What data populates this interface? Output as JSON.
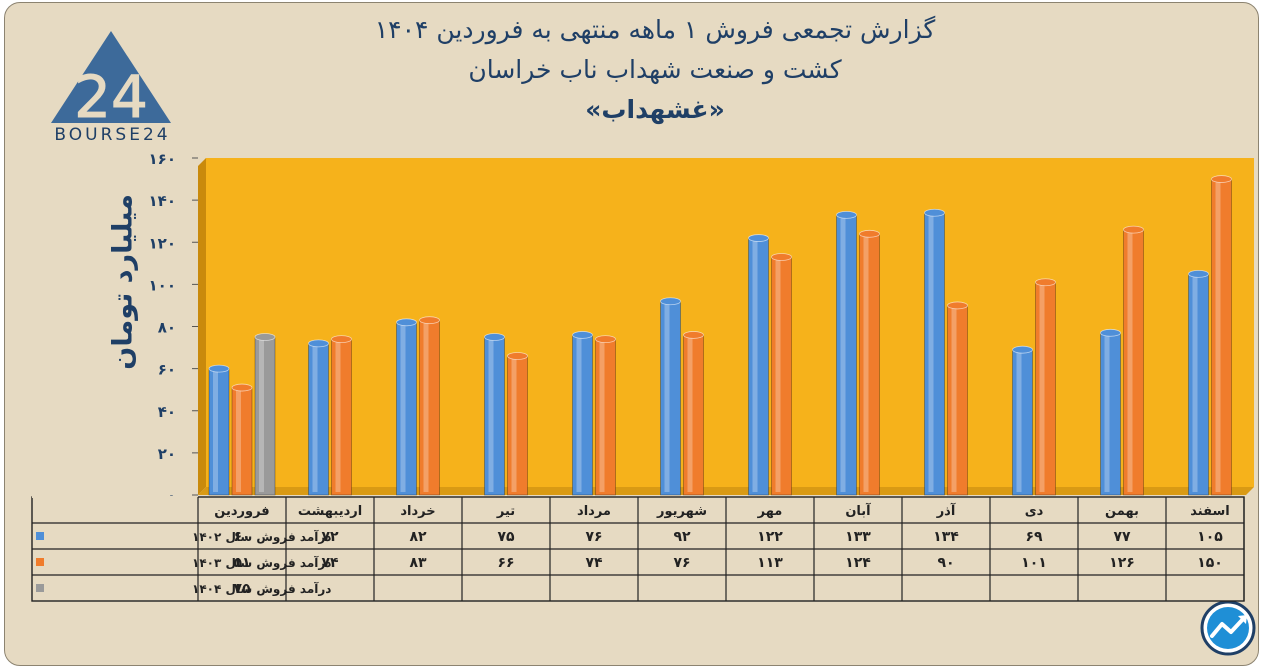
{
  "header": {
    "title_line1": "گزارش تجمعی فروش ۱ ماهه منتهی به فروردین ۱۴۰۴",
    "title_line2": "کشت و صنعت شهداب ناب خراسان",
    "title_line3": "«غشهداب»"
  },
  "logo": {
    "mark": "24",
    "text": "BOURSE24",
    "icon": "bourse24-triangle-logo"
  },
  "corner_icon": "trend-chart-icon",
  "colors": {
    "plot_bg": "#f6b21b",
    "series_1402": "#4f8fd8",
    "series_1403": "#f07c2c",
    "series_1404": "#9a9a9a",
    "text": "#1f3f66"
  },
  "chart_data": {
    "type": "bar",
    "ylabel": "میلیارد تومان",
    "ylim": [
      0,
      160
    ],
    "yticks": [
      0,
      20,
      40,
      60,
      80,
      100,
      120,
      140,
      160
    ],
    "ytick_labels": [
      "۰",
      "۲۰",
      "۴۰",
      "۶۰",
      "۸۰",
      "۱۰۰",
      "۱۲۰",
      "۱۴۰",
      "۱۶۰"
    ],
    "categories": [
      "فروردین",
      "اردیبهشت",
      "خرداد",
      "تیر",
      "مرداد",
      "شهریور",
      "مهر",
      "آبان",
      "آذر",
      "دی",
      "بهمن",
      "اسفند"
    ],
    "series": [
      {
        "name": "درآمد فروش سال ۱۴۰۲",
        "values": [
          60,
          72,
          82,
          75,
          76,
          92,
          122,
          133,
          134,
          69,
          77,
          105
        ],
        "labels": [
          "۶۰",
          "۷۲",
          "۸۲",
          "۷۵",
          "۷۶",
          "۹۲",
          "۱۲۲",
          "۱۳۳",
          "۱۳۴",
          "۶۹",
          "۷۷",
          "۱۰۵"
        ]
      },
      {
        "name": "درآمد فروش سال ۱۴۰۳",
        "values": [
          51,
          74,
          83,
          66,
          74,
          76,
          113,
          124,
          90,
          101,
          126,
          150
        ],
        "labels": [
          "۵۱",
          "۷۴",
          "۸۳",
          "۶۶",
          "۷۴",
          "۷۶",
          "۱۱۳",
          "۱۲۴",
          "۹۰",
          "۱۰۱",
          "۱۲۶",
          "۱۵۰"
        ]
      },
      {
        "name": "درآمد فروش سال ۱۴۰۴",
        "values": [
          75,
          null,
          null,
          null,
          null,
          null,
          null,
          null,
          null,
          null,
          null,
          null
        ],
        "labels": [
          "۷۵",
          "",
          "",
          "",
          "",
          "",
          "",
          "",
          "",
          "",
          "",
          ""
        ]
      }
    ],
    "grid": false,
    "legend": "table-left"
  }
}
